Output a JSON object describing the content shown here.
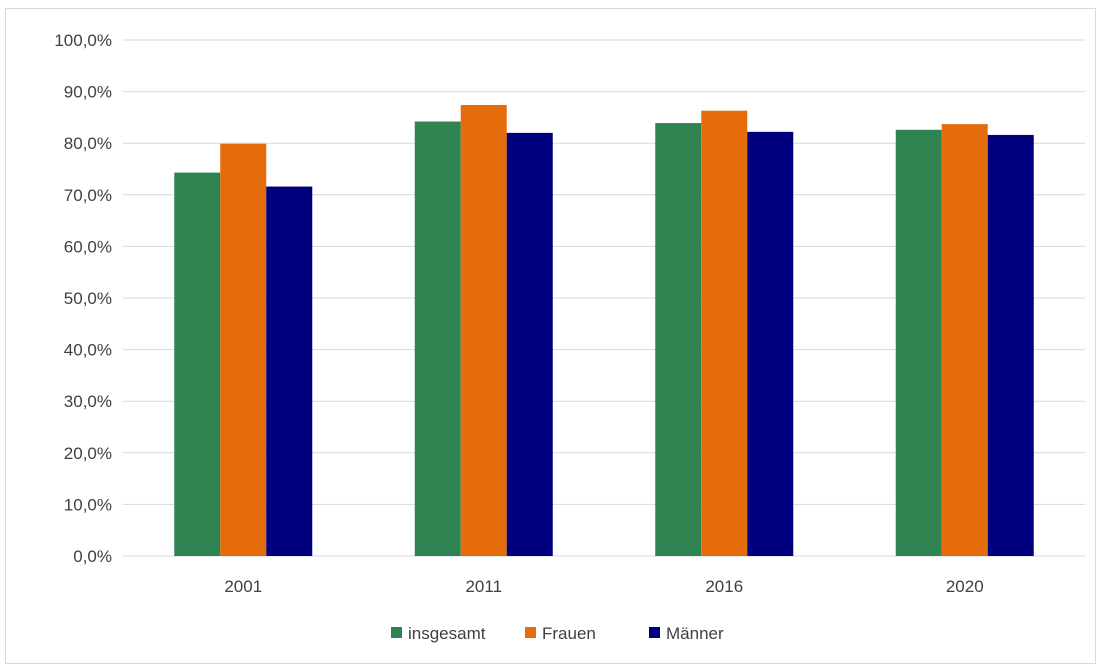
{
  "chart_data": {
    "type": "bar",
    "categories": [
      "2001",
      "2011",
      "2016",
      "2020"
    ],
    "series": [
      {
        "name": "insgesamt",
        "color": "#2e8351",
        "values": [
          74.3,
          84.2,
          83.9,
          82.6
        ]
      },
      {
        "name": "Frauen",
        "color": "#e46c0a",
        "values": [
          79.9,
          87.4,
          86.3,
          83.7
        ]
      },
      {
        "name": "Männer",
        "color": "#00007f",
        "values": [
          71.6,
          82.0,
          82.2,
          81.6
        ]
      }
    ],
    "ylim": [
      0,
      100
    ],
    "yticks": [
      "0,0%",
      "10,0%",
      "20,0%",
      "30,0%",
      "40,0%",
      "50,0%",
      "60,0%",
      "70,0%",
      "80,0%",
      "90,0%",
      "100,0%"
    ],
    "grid": true,
    "legend_position": "bottom",
    "title": "",
    "xlabel": "",
    "ylabel": ""
  }
}
